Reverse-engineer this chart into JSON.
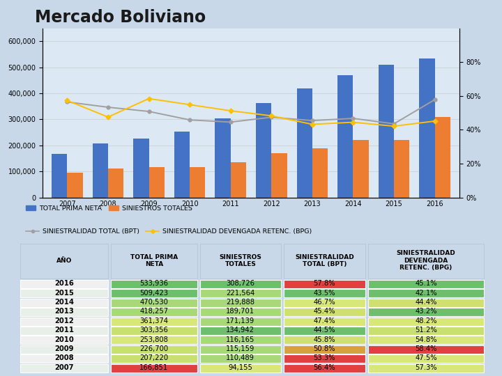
{
  "title": "Mercado Boliviano",
  "years": [
    2007,
    2008,
    2009,
    2010,
    2011,
    2012,
    2013,
    2014,
    2015,
    2016
  ],
  "prima_neta": [
    166851,
    207220,
    226700,
    253808,
    303356,
    361374,
    418257,
    470530,
    509423,
    533936
  ],
  "siniestros_totales": [
    94155,
    110489,
    115159,
    116165,
    134942,
    171139,
    189701,
    219888,
    221564,
    308726
  ],
  "siniestralidad_bpt": [
    0.564,
    0.533,
    0.508,
    0.458,
    0.445,
    0.474,
    0.454,
    0.467,
    0.435,
    0.578
  ],
  "siniestralidad_bpg": [
    0.573,
    0.475,
    0.584,
    0.548,
    0.512,
    0.482,
    0.432,
    0.444,
    0.421,
    0.451
  ],
  "table_data": [
    [
      "2016",
      "533,936",
      "308,726",
      "57.8%",
      "45.1%"
    ],
    [
      "2015",
      "509,423",
      "221,564",
      "43.5%",
      "42.1%"
    ],
    [
      "2014",
      "470,530",
      "219,888",
      "46.7%",
      "44.4%"
    ],
    [
      "2013",
      "418,257",
      "189,701",
      "45.4%",
      "43.2%"
    ],
    [
      "2012",
      "361,374",
      "171,139",
      "47.4%",
      "48.2%"
    ],
    [
      "2011",
      "303,356",
      "134,942",
      "44.5%",
      "51.2%"
    ],
    [
      "2010",
      "253,808",
      "116,165",
      "45.8%",
      "54.8%"
    ],
    [
      "2009",
      "226,700",
      "115,159",
      "50.8%",
      "58.4%"
    ],
    [
      "2008",
      "207,220",
      "110,489",
      "53.3%",
      "47.5%"
    ],
    [
      "2007",
      "166,851",
      "94,155",
      "56.4%",
      "57.3%"
    ]
  ],
  "col0_colors": [
    "#f0f0f0",
    "#e8efe8",
    "#f0f0f0",
    "#e8efe8",
    "#f0f0f0",
    "#e8efe8",
    "#f0f0f0",
    "#e8efe8",
    "#f0f0f0",
    "#e8efe8"
  ],
  "col1_colors": [
    "#6dbf6d",
    "#6dbf6d",
    "#a8d878",
    "#a8d878",
    "#d8e878",
    "#c8e070",
    "#d8e878",
    "#c8e070",
    "#c8e070",
    "#e04040"
  ],
  "col2_colors": [
    "#6dbf6d",
    "#a8d878",
    "#a8d878",
    "#a8d878",
    "#a8d878",
    "#6dbf6d",
    "#a8d878",
    "#a8d878",
    "#a8d878",
    "#d8e878"
  ],
  "col3_colors": [
    "#e04040",
    "#6dbf6d",
    "#d8e878",
    "#d0e070",
    "#d8e878",
    "#6dbf6d",
    "#d0e070",
    "#d8a040",
    "#e04040",
    "#e04040"
  ],
  "col4_colors": [
    "#6dbf6d",
    "#6dbf6d",
    "#d0e070",
    "#6dbf6d",
    "#d8e878",
    "#c8e070",
    "#d8e878",
    "#e04040",
    "#d8e878",
    "#d8e878"
  ],
  "bar_blue": "#4472c4",
  "bar_orange": "#ed7d31",
  "line_gray": "#a0a0a0",
  "line_yellow": "#ffc000",
  "bg_color": "#c8d8e8",
  "chart_bg": "#dce8f4"
}
